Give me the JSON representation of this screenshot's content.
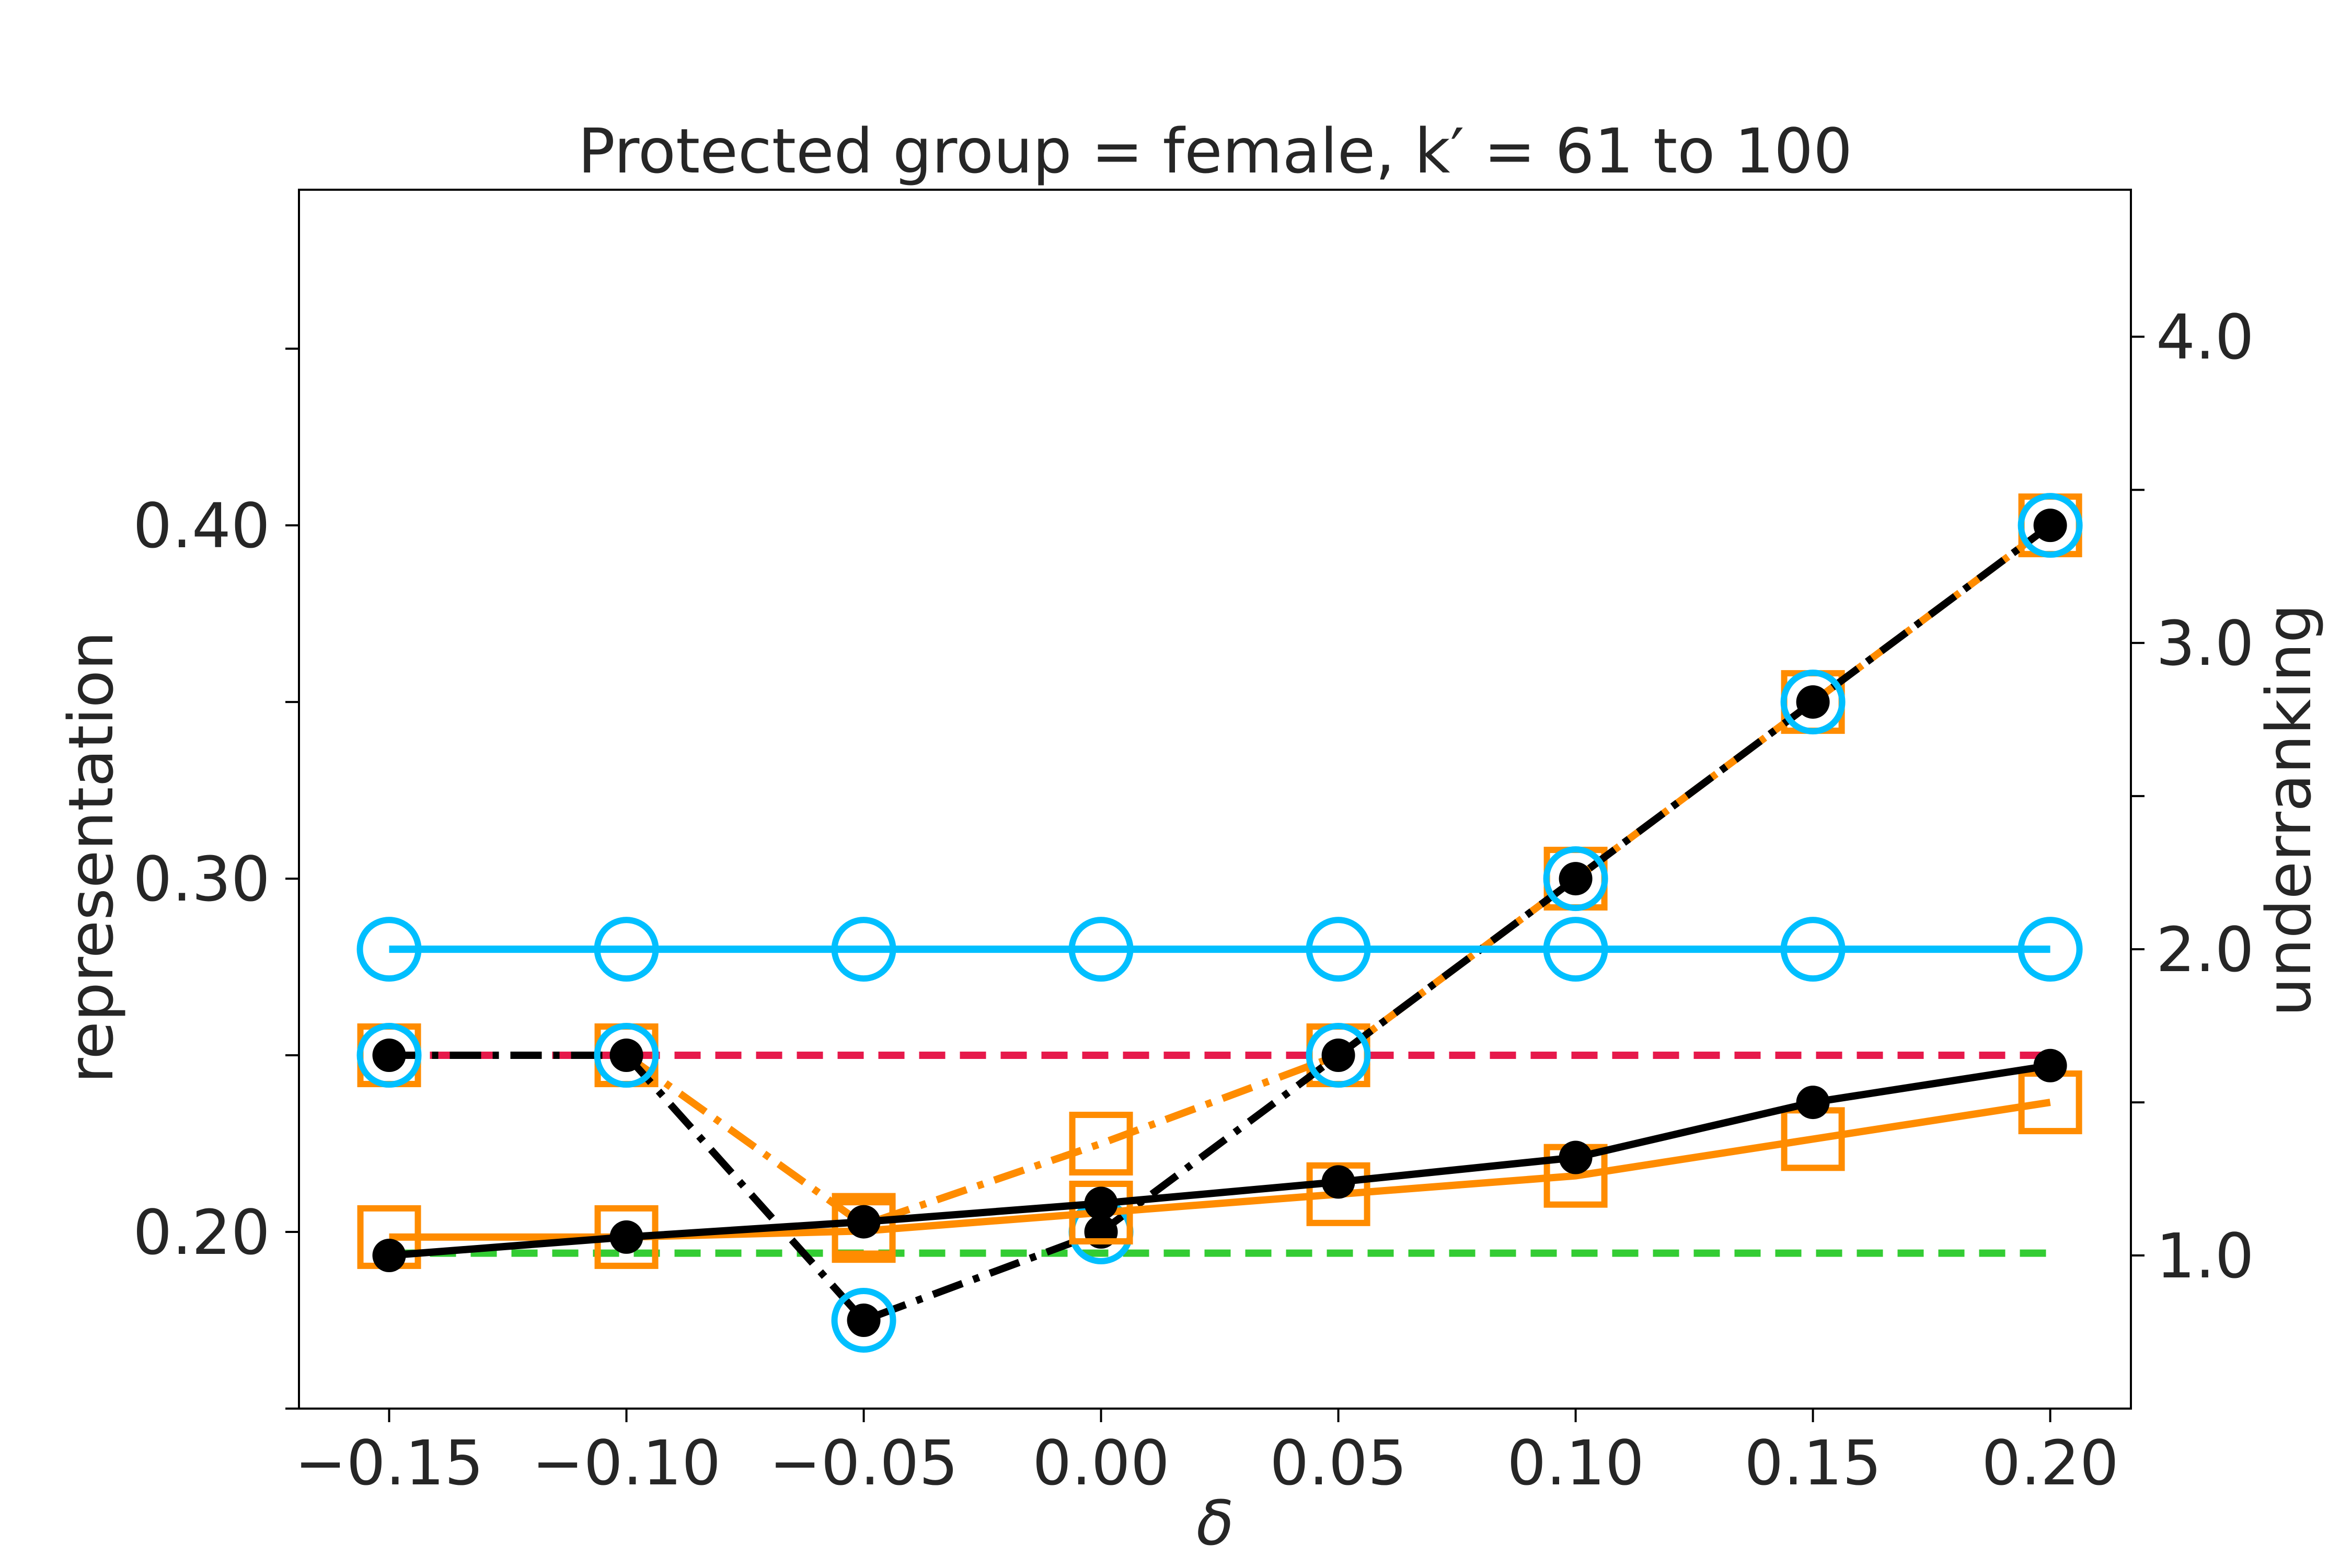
{
  "chart_data": {
    "type": "line",
    "title": "Protected group = female, k′ = 61 to 100",
    "xlabel": "δ",
    "ylabel_left": "representation",
    "ylabel_right": "underranking",
    "x": [
      -0.15,
      -0.1,
      -0.05,
      0.0,
      0.05,
      0.1,
      0.15,
      0.2
    ],
    "x_tick_labels": [
      "−0.15",
      "−0.10",
      "−0.05",
      "0.00",
      "0.05",
      "0.10",
      "0.15",
      "0.20"
    ],
    "xlim": [
      -0.169,
      0.217
    ],
    "ylim_left": [
      0.15,
      0.495
    ],
    "y_left_ticks": [
      0.15,
      0.2,
      0.25,
      0.3,
      0.35,
      0.4,
      0.45
    ],
    "y_left_tick_labels": [
      "",
      "0.20",
      "",
      "0.30",
      "",
      "0.40",
      ""
    ],
    "ylim_right": [
      0.5,
      4.48
    ],
    "y_right_ticks": [
      1.0,
      1.5,
      2.0,
      2.5,
      3.0,
      3.5,
      4.0
    ],
    "y_right_tick_labels": [
      "1.0",
      "",
      "2.0",
      "",
      "3.0",
      "",
      "4.0"
    ],
    "grid": false,
    "legend": "none",
    "series": [
      {
        "axis": "left",
        "color": "#e6194b",
        "style": "dashed",
        "marker": "none",
        "values": [
          0.25,
          0.25,
          0.25,
          0.25,
          0.25,
          0.25,
          0.25,
          0.25
        ]
      },
      {
        "axis": "left",
        "color": "#33cc33",
        "style": "dashed",
        "marker": "none",
        "values": [
          0.194,
          0.194,
          0.194,
          0.194,
          0.194,
          0.194,
          0.194,
          0.194
        ]
      },
      {
        "axis": "left",
        "color": "#ff8c00",
        "style": "dashdot",
        "marker": "square-open",
        "values": [
          0.25,
          0.25,
          0.202,
          0.225,
          0.25,
          0.3,
          0.35,
          0.4
        ]
      },
      {
        "axis": "left",
        "color": "#000000",
        "style": "dashdot",
        "marker": "circle-filled",
        "values": [
          0.25,
          0.25,
          0.175,
          0.2,
          0.25,
          0.3,
          0.35,
          0.4
        ]
      },
      {
        "axis": "left",
        "color": "#00bfff",
        "style": "none",
        "marker": "circle-open",
        "values": [
          0.25,
          0.25,
          0.175,
          0.2,
          0.25,
          0.3,
          0.35,
          0.4
        ]
      },
      {
        "axis": "right",
        "color": "#ff8c00",
        "style": "solid",
        "marker": "square-open",
        "values": [
          1.06,
          1.06,
          1.08,
          1.14,
          1.2,
          1.26,
          1.38,
          1.5
        ]
      },
      {
        "axis": "right",
        "color": "#00bfff",
        "style": "solid",
        "marker": "circle-open",
        "values": [
          2.0,
          2.0,
          2.0,
          2.0,
          2.0,
          2.0,
          2.0,
          2.0
        ]
      },
      {
        "axis": "right",
        "color": "#000000",
        "style": "solid",
        "marker": "circle-filled",
        "values": [
          1.0,
          1.06,
          1.11,
          1.17,
          1.24,
          1.32,
          1.5,
          1.62
        ]
      }
    ]
  }
}
